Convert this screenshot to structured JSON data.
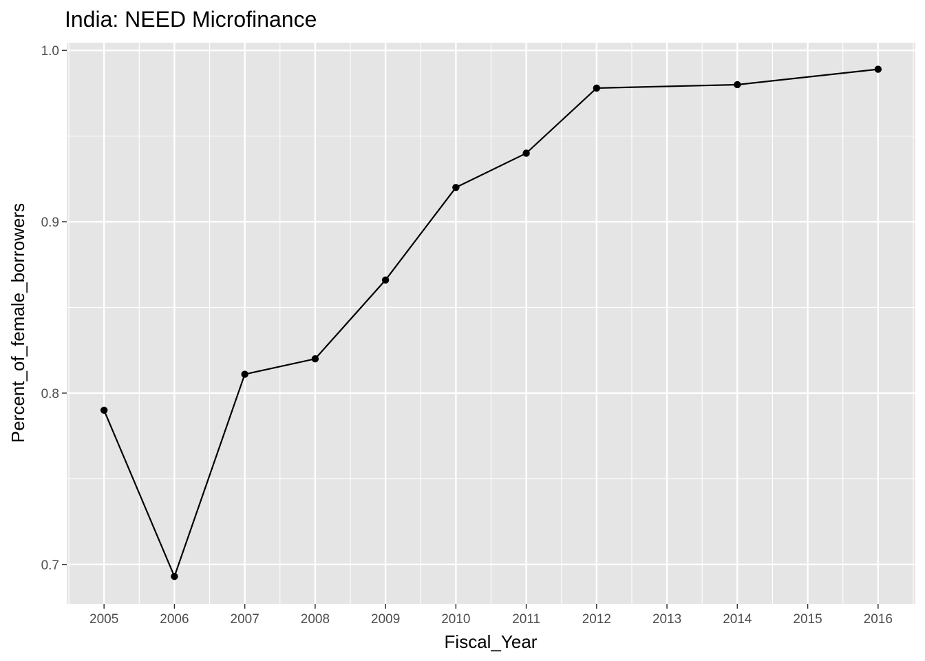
{
  "chart_data": {
    "type": "line",
    "title": "India:  NEED Microfinance",
    "xlabel": "Fiscal_Year",
    "ylabel": "Percent_of_female_borrowers",
    "x_ticks": [
      2005,
      2006,
      2007,
      2008,
      2009,
      2010,
      2011,
      2012,
      2013,
      2014,
      2015,
      2016
    ],
    "y_ticks": [
      "0.7",
      "0.8",
      "0.9",
      "1.0"
    ],
    "xlim": [
      2004.47,
      2016.53
    ],
    "ylim": [
      0.677,
      1.0045
    ],
    "grid": true,
    "series": [
      {
        "x": [
          2005,
          2006,
          2007,
          2008,
          2009,
          2010,
          2011,
          2012,
          2014,
          2016
        ],
        "y": [
          0.79,
          0.693,
          0.811,
          0.82,
          0.866,
          0.92,
          0.94,
          0.978,
          0.98,
          0.989
        ],
        "color": "#000000"
      }
    ],
    "panel_background": "#e5e5e5"
  }
}
